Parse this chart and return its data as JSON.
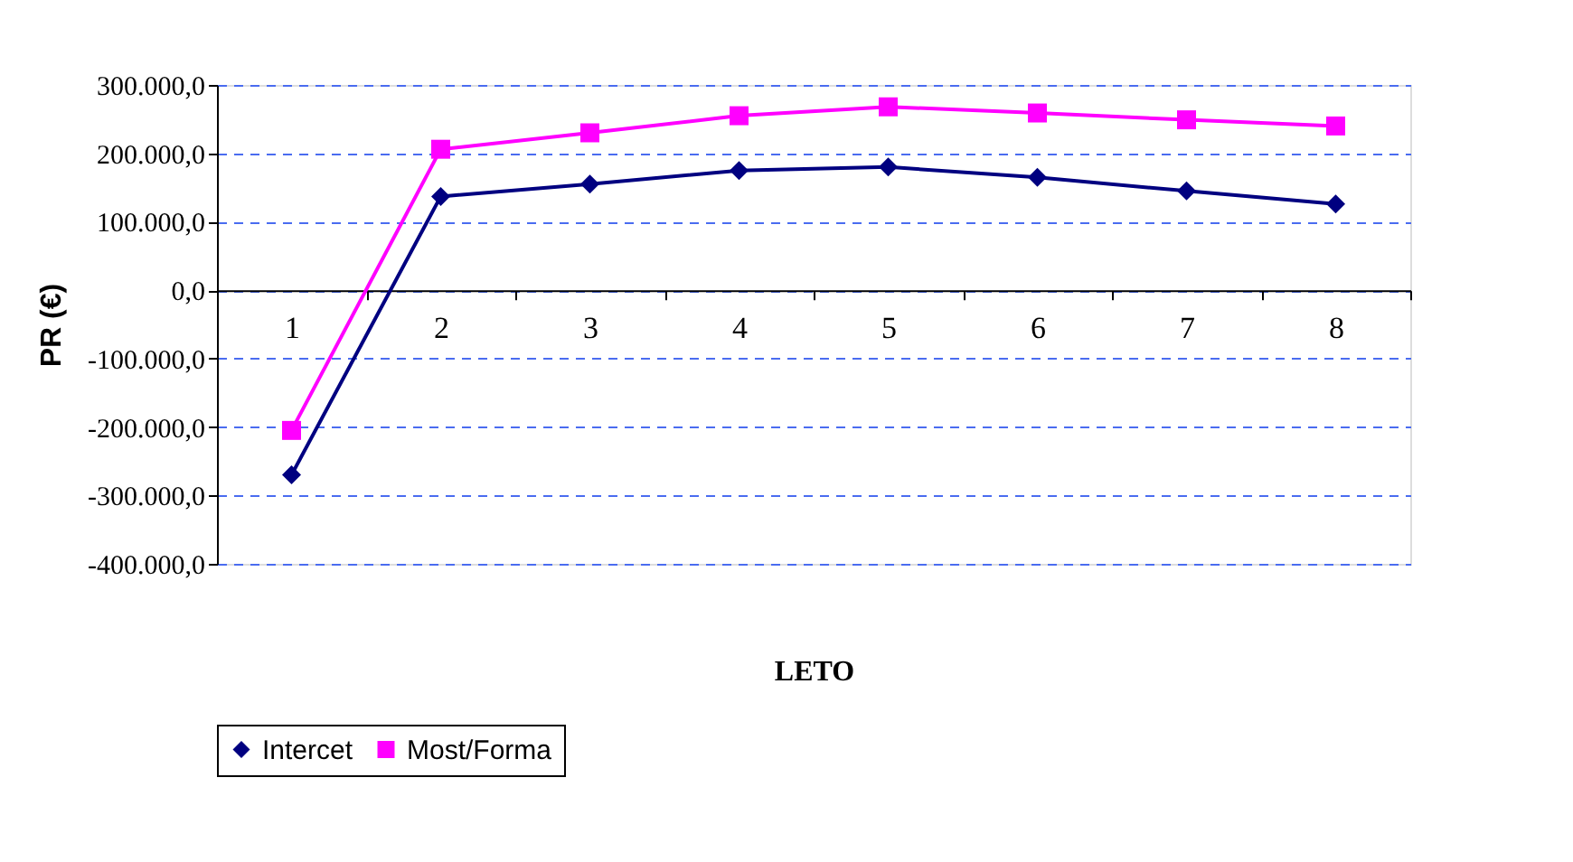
{
  "chart_data": {
    "type": "line",
    "xlabel": "LETO",
    "ylabel": "PR (€)",
    "categories": [
      "1",
      "2",
      "3",
      "4",
      "5",
      "6",
      "7",
      "8"
    ],
    "series": [
      {
        "name": "Intercet",
        "color": "#000080",
        "marker": "diamond",
        "values": [
          -270000,
          137000,
          155000,
          175000,
          180000,
          165000,
          145000,
          126000
        ]
      },
      {
        "name": "Most/Forma",
        "color": "#ff00ff",
        "marker": "square",
        "values": [
          -205000,
          206000,
          230000,
          255000,
          268000,
          259000,
          249000,
          240000
        ]
      }
    ],
    "ylim": [
      -400000,
      300000
    ],
    "yticks": [
      {
        "value": -400000,
        "label": "-400.000,0"
      },
      {
        "value": -300000,
        "label": "-300.000,0"
      },
      {
        "value": -200000,
        "label": "-200.000,0"
      },
      {
        "value": -100000,
        "label": "-100.000,0"
      },
      {
        "value": 0,
        "label": "0,0"
      },
      {
        "value": 100000,
        "label": "100.000,0"
      },
      {
        "value": 200000,
        "label": "200.000,0"
      },
      {
        "value": 300000,
        "label": "300.000,0"
      }
    ],
    "grid": "y",
    "legend": "bottom",
    "line_style": "solid"
  }
}
